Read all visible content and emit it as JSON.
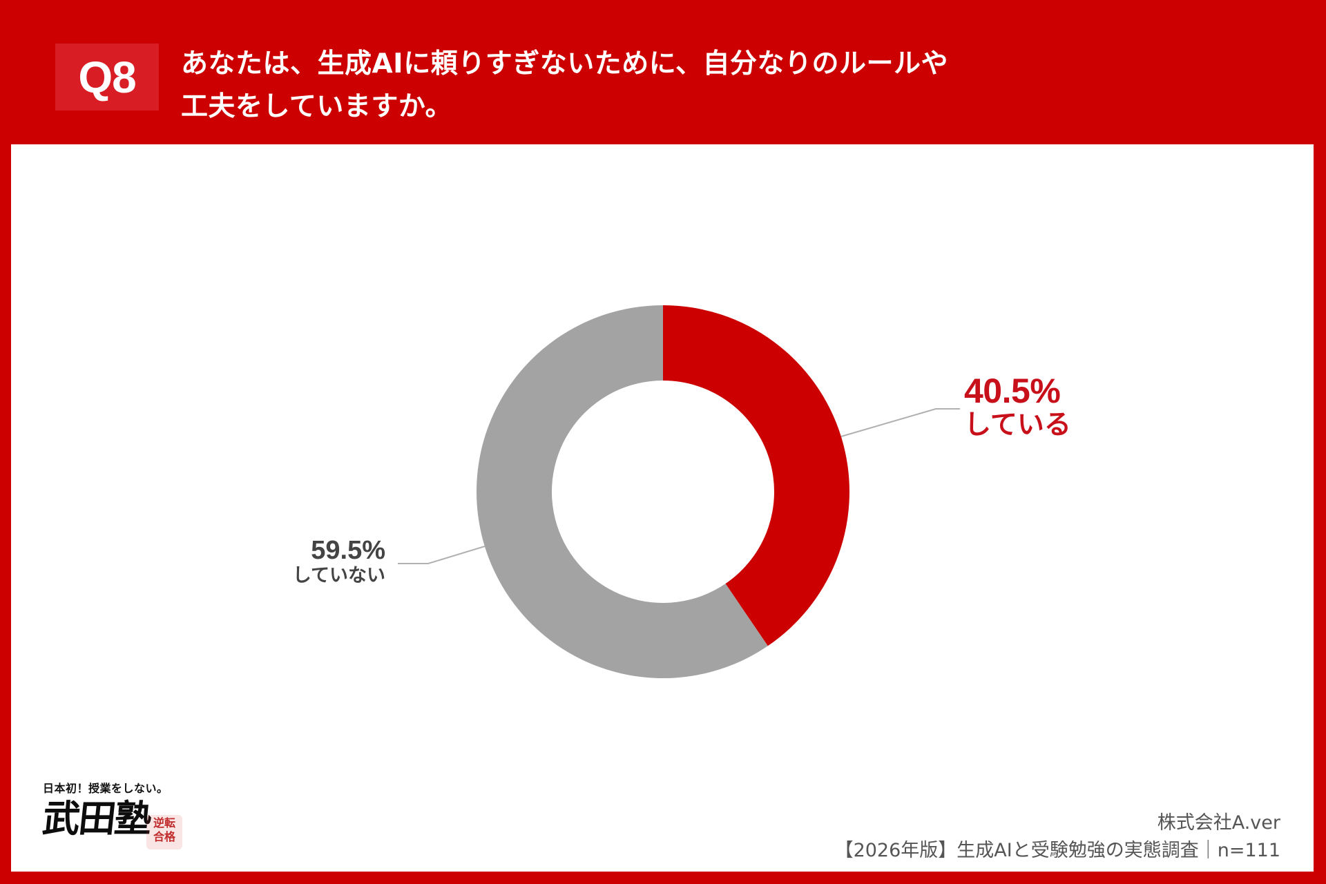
{
  "header": {
    "question_number": "Q8",
    "question_line1": "あなたは、生成AIに頼りすぎないために、自分なりのルールや",
    "question_line2": "工夫をしていますか。"
  },
  "chart_data": {
    "type": "pie",
    "variant": "donut",
    "title": "あなたは、生成AIに頼りすぎないために、自分なりのルールや工夫をしていますか。",
    "categories": [
      "している",
      "していない"
    ],
    "values": [
      40.5,
      59.5
    ],
    "unit": "%",
    "colors": [
      "#cc0000",
      "#a3a3a3"
    ],
    "start_angle_deg": 0,
    "direction": "clockwise",
    "legend": "none (inline labels with leader lines)",
    "n": 111
  },
  "labels": {
    "yes": {
      "pct": "40.5%",
      "cat": "している"
    },
    "no": {
      "pct": "59.5%",
      "cat": "していない"
    }
  },
  "logo": {
    "tagline": "日本初！授業をしない。",
    "name": "武田塾",
    "stamp_line1": "逆転",
    "stamp_line2": "合格"
  },
  "credits": {
    "company": "株式会社A.ver",
    "survey": "【2026年版】生成AIと受験勉強の実態調査｜n=111"
  },
  "colors": {
    "brand_red": "#cc0000",
    "badge_red": "#d81e24",
    "gray_segment": "#a3a3a3",
    "leader_line": "#b0b0b0"
  }
}
